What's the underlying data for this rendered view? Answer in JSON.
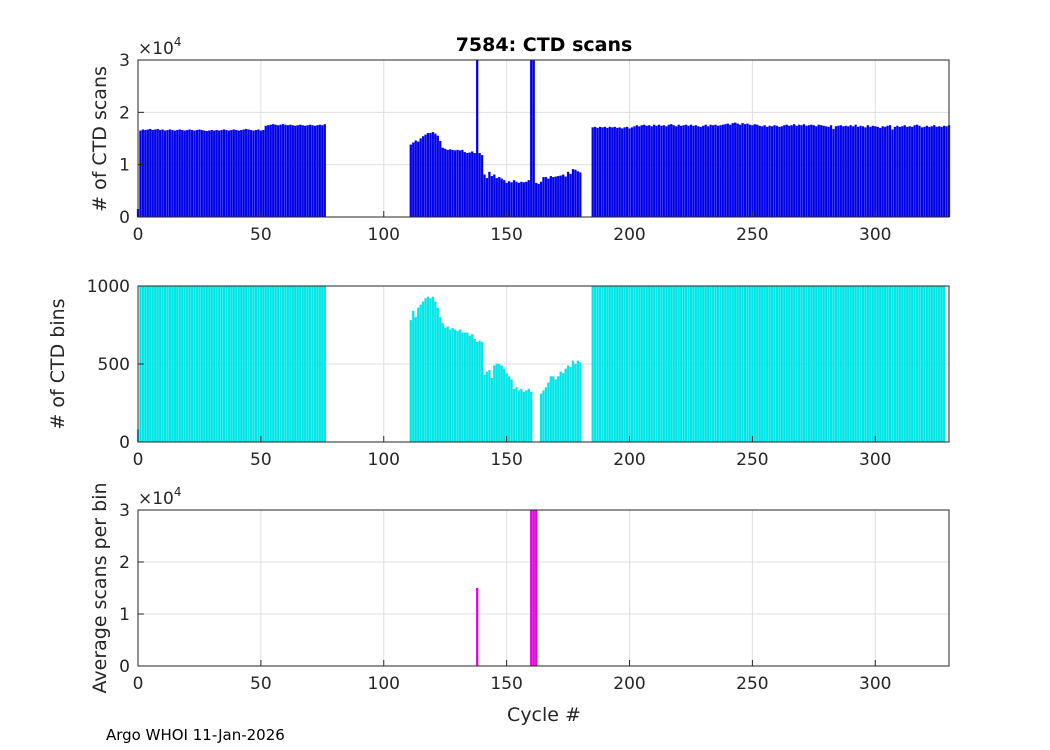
{
  "footer": "Argo WHOI 11-Jan-2026",
  "chart_data": [
    {
      "type": "bar",
      "title": "7584: CTD scans",
      "xlabel": "",
      "ylabel": "# of CTD scans",
      "exponent_label": "×10",
      "exponent_power": "4",
      "color": "#0000e6",
      "xlim": [
        0,
        330
      ],
      "ylim": [
        0,
        30000
      ],
      "xticks": [
        "0",
        "50",
        "100",
        "150",
        "200",
        "250",
        "300"
      ],
      "yticks": [
        "0",
        "1",
        "2",
        "3"
      ],
      "segments": [
        {
          "x_start": 0,
          "values": [
            1500,
            16500,
            16700,
            16600,
            16700,
            16800,
            16600,
            16700,
            16800,
            16600,
            16700,
            16500,
            16600,
            16700,
            16600,
            16500,
            16600,
            16700,
            16600,
            16500,
            16600,
            16700,
            16600,
            16500,
            16600,
            16700,
            16600,
            16500,
            16400,
            16500,
            16600,
            16500,
            16600,
            16500,
            16600,
            16700,
            16600,
            16500,
            16600,
            16700,
            16600,
            16500,
            16600,
            16700,
            16800,
            16700,
            16600,
            16500,
            16600,
            16700,
            16500,
            16600,
            17400,
            17500,
            17600,
            17700,
            17600,
            17500,
            17600,
            17700,
            17600,
            17500,
            17600,
            17500,
            17400,
            17500,
            17600,
            17500,
            17400,
            17500,
            17600,
            17500,
            17400,
            17500,
            17600,
            17500,
            17700
          ]
        },
        {
          "x_start": 111,
          "values": [
            13800,
            14200,
            14600,
            14400,
            15000,
            15400,
            15700,
            16000,
            16000,
            16200,
            15900,
            15500,
            14500,
            13200,
            13000,
            12800,
            12900,
            12800,
            12700,
            12800,
            12700,
            12800,
            12400,
            12200,
            12300,
            12500,
            12200,
            30000,
            12200,
            11800,
            8100,
            7400,
            8600,
            7800,
            8100,
            7400,
            7600,
            7300,
            7000,
            6500,
            6800,
            6600,
            7000,
            6700,
            6500,
            6700,
            6600,
            6700,
            7000,
            30000,
            30000,
            6500,
            6300,
            6700,
            7600,
            7600,
            7300,
            7800,
            7600,
            7700,
            7800,
            7900,
            8100,
            7700,
            8600,
            8200,
            9100,
            9000,
            8700,
            8500
          ]
        },
        {
          "x_start": 185,
          "values": [
            17100,
            17200,
            17000,
            17200,
            17100,
            17200,
            17000,
            17200,
            17100,
            17200,
            17000,
            17100,
            16900,
            17100,
            17200,
            16900,
            17100,
            17300,
            17500,
            17300,
            17500,
            17600,
            17400,
            17500,
            17300,
            17600,
            17400,
            17600,
            17400,
            17500,
            17300,
            17600,
            17700,
            17500,
            17300,
            17600,
            17400,
            17500,
            17600,
            17400,
            17600,
            17400,
            17500,
            17300,
            17200,
            17400,
            17600,
            17300,
            17600,
            17500,
            17600,
            17400,
            17500,
            17600,
            17700,
            17800,
            17600,
            17900,
            18000,
            17800,
            17600,
            17900,
            17700,
            17800,
            17600,
            17500,
            17700,
            17600,
            17400,
            17300,
            17500,
            17200,
            17400,
            17300,
            17500,
            17400,
            17200,
            17300,
            17500,
            17600,
            17400,
            17500,
            17700,
            17400,
            17600,
            17500,
            17700,
            17400,
            17500,
            17600,
            17500,
            17300,
            17600,
            17500,
            17400,
            17300,
            17200,
            17500,
            16800,
            17300,
            17400,
            17500,
            17300,
            17400,
            17300,
            17500,
            17300,
            17600,
            17200,
            17400,
            17300,
            17100,
            17500,
            17200,
            17400,
            17300,
            17200,
            17000,
            17300,
            17200,
            17400,
            17500,
            16700,
            17200,
            17400,
            17200,
            17300,
            17500,
            17200,
            17300,
            17200,
            17500,
            17600,
            17400,
            17100,
            17200,
            17400,
            17200,
            17300,
            17500,
            17200,
            17300,
            17200,
            17400,
            17300,
            17500
          ]
        }
      ]
    },
    {
      "type": "bar",
      "title": "",
      "xlabel": "",
      "ylabel": "# of CTD bins",
      "color": "#00e6e6",
      "xlim": [
        0,
        330
      ],
      "ylim": [
        0,
        1000
      ],
      "xticks": [
        "0",
        "50",
        "100",
        "150",
        "200",
        "250",
        "300"
      ],
      "yticks": [
        "0",
        "500",
        "1000"
      ],
      "segments": [
        {
          "x_start": 0,
          "values": [
            80,
            1000,
            1000,
            1000,
            1000,
            1000,
            1000,
            1000,
            1000,
            1000,
            1000,
            1000,
            1000,
            1000,
            1000,
            1000,
            1000,
            1000,
            1000,
            1000,
            1000,
            1000,
            1000,
            1000,
            1000,
            1000,
            1000,
            1000,
            1000,
            1000,
            1000,
            1000,
            1000,
            1000,
            1000,
            1000,
            1000,
            1000,
            1000,
            1000,
            1000,
            1000,
            1000,
            1000,
            1000,
            1000,
            1000,
            1000,
            1000,
            1000,
            1000,
            1000,
            1000,
            1000,
            1000,
            1000,
            1000,
            1000,
            1000,
            1000,
            1000,
            1000,
            1000,
            1000,
            1000,
            1000,
            1000,
            1000,
            1000,
            1000,
            1000,
            1000,
            1000,
            1000,
            1000,
            1000,
            1000
          ]
        },
        {
          "x_start": 111,
          "values": [
            780,
            840,
            800,
            860,
            880,
            900,
            920,
            930,
            920,
            930,
            900,
            860,
            800,
            760,
            730,
            740,
            720,
            730,
            720,
            710,
            720,
            700,
            700,
            700,
            680,
            690,
            660,
            640,
            650,
            640,
            430,
            450,
            460,
            410,
            490,
            500,
            500,
            490,
            470,
            440,
            420,
            400,
            340,
            350,
            330,
            340,
            320,
            330,
            340,
            320,
            0,
            0,
            0,
            310,
            330,
            350,
            380,
            420,
            420,
            400,
            420,
            450,
            440,
            470,
            490,
            480,
            520,
            500,
            520,
            510
          ]
        },
        {
          "x_start": 185,
          "values": [
            1000,
            1000,
            1000,
            1000,
            1000,
            1000,
            1000,
            1000,
            1000,
            1000,
            1000,
            1000,
            1000,
            1000,
            1000,
            1000,
            1000,
            1000,
            1000,
            1000,
            1000,
            1000,
            1000,
            1000,
            1000,
            1000,
            1000,
            1000,
            1000,
            1000,
            1000,
            1000,
            1000,
            1000,
            1000,
            1000,
            1000,
            1000,
            1000,
            1000,
            1000,
            1000,
            1000,
            1000,
            1000,
            1000,
            1000,
            1000,
            1000,
            1000,
            1000,
            1000,
            1000,
            1000,
            1000,
            1000,
            1000,
            1000,
            1000,
            1000,
            1000,
            1000,
            1000,
            1000,
            1000,
            1000,
            1000,
            1000,
            1000,
            1000,
            1000,
            1000,
            1000,
            1000,
            1000,
            1000,
            1000,
            1000,
            1000,
            1000,
            1000,
            1000,
            1000,
            1000,
            1000,
            1000,
            1000,
            1000,
            1000,
            1000,
            1000,
            1000,
            1000,
            1000,
            1000,
            1000,
            1000,
            1000,
            1000,
            1000,
            1000,
            1000,
            1000,
            1000,
            1000,
            1000,
            1000,
            1000,
            1000,
            1000,
            1000,
            1000,
            1000,
            1000,
            1000,
            1000,
            1000,
            1000,
            1000,
            1000,
            1000,
            1000,
            1000,
            1000,
            1000,
            1000,
            1000,
            1000,
            1000,
            1000,
            1000,
            1000,
            1000,
            1000,
            1000,
            1000,
            1000,
            1000,
            1000,
            1000,
            1000,
            1000,
            1000,
            1000
          ]
        }
      ]
    },
    {
      "type": "bar",
      "title": "",
      "xlabel": "Cycle #",
      "ylabel": "Average scans per bin",
      "exponent_label": "×10",
      "exponent_power": "4",
      "color": "#e600e6",
      "xlim": [
        0,
        330
      ],
      "ylim": [
        0,
        30000
      ],
      "xticks": [
        "0",
        "50",
        "100",
        "150",
        "200",
        "250",
        "300"
      ],
      "yticks": [
        "0",
        "1",
        "2",
        "3"
      ],
      "segments": [
        {
          "x_start": 138,
          "values": [
            15000
          ]
        },
        {
          "x_start": 160,
          "values": [
            30000,
            30000,
            30000
          ]
        }
      ]
    }
  ]
}
